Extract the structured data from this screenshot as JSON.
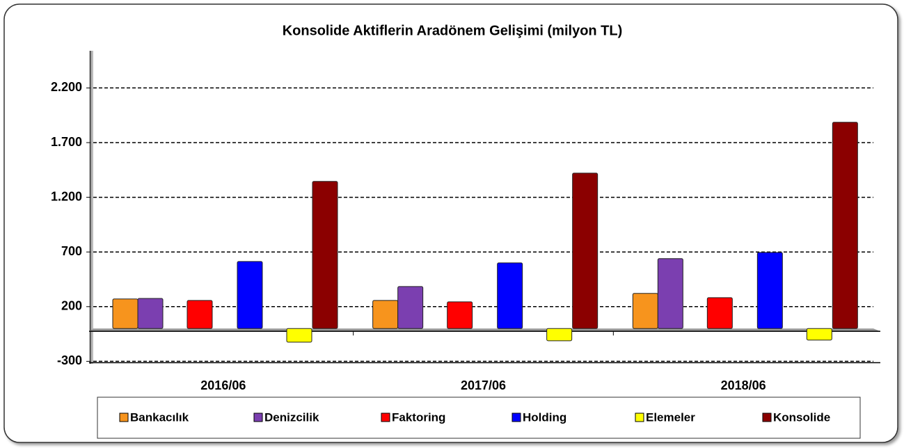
{
  "chart_data": {
    "type": "bar",
    "title": "Konsolide Aktiflerin Aradönem Gelişimi (milyon TL)",
    "categories": [
      "2016/06",
      "2017/06",
      "2018/06"
    ],
    "series": [
      {
        "name": "Bankacılık",
        "color": "#f7941d",
        "values": [
          270,
          257,
          321
        ]
      },
      {
        "name": "Denizcilik",
        "color": "#7b3fb0",
        "values": [
          275,
          384,
          639
        ]
      },
      {
        "name": "Faktoring",
        "color": "#ff0000",
        "values": [
          257,
          244,
          282
        ]
      },
      {
        "name": "Holding",
        "color": "#0000ff",
        "values": [
          613,
          600,
          696
        ]
      },
      {
        "name": "Elemeler",
        "color": "#ffff00",
        "values": [
          -125,
          -112,
          -106
        ]
      },
      {
        "name": "Konsolide",
        "color": "#8b0000",
        "values": [
          1345,
          1421,
          1886
        ]
      }
    ],
    "ylim": [
      -300,
      2500
    ],
    "yticks": [
      -300,
      200,
      700,
      {
        "value": 1200,
        "label": "1.200"
      },
      {
        "value": 1700,
        "label": "1.700"
      },
      {
        "value": 2200,
        "label": "2.200"
      }
    ],
    "grid": true
  }
}
